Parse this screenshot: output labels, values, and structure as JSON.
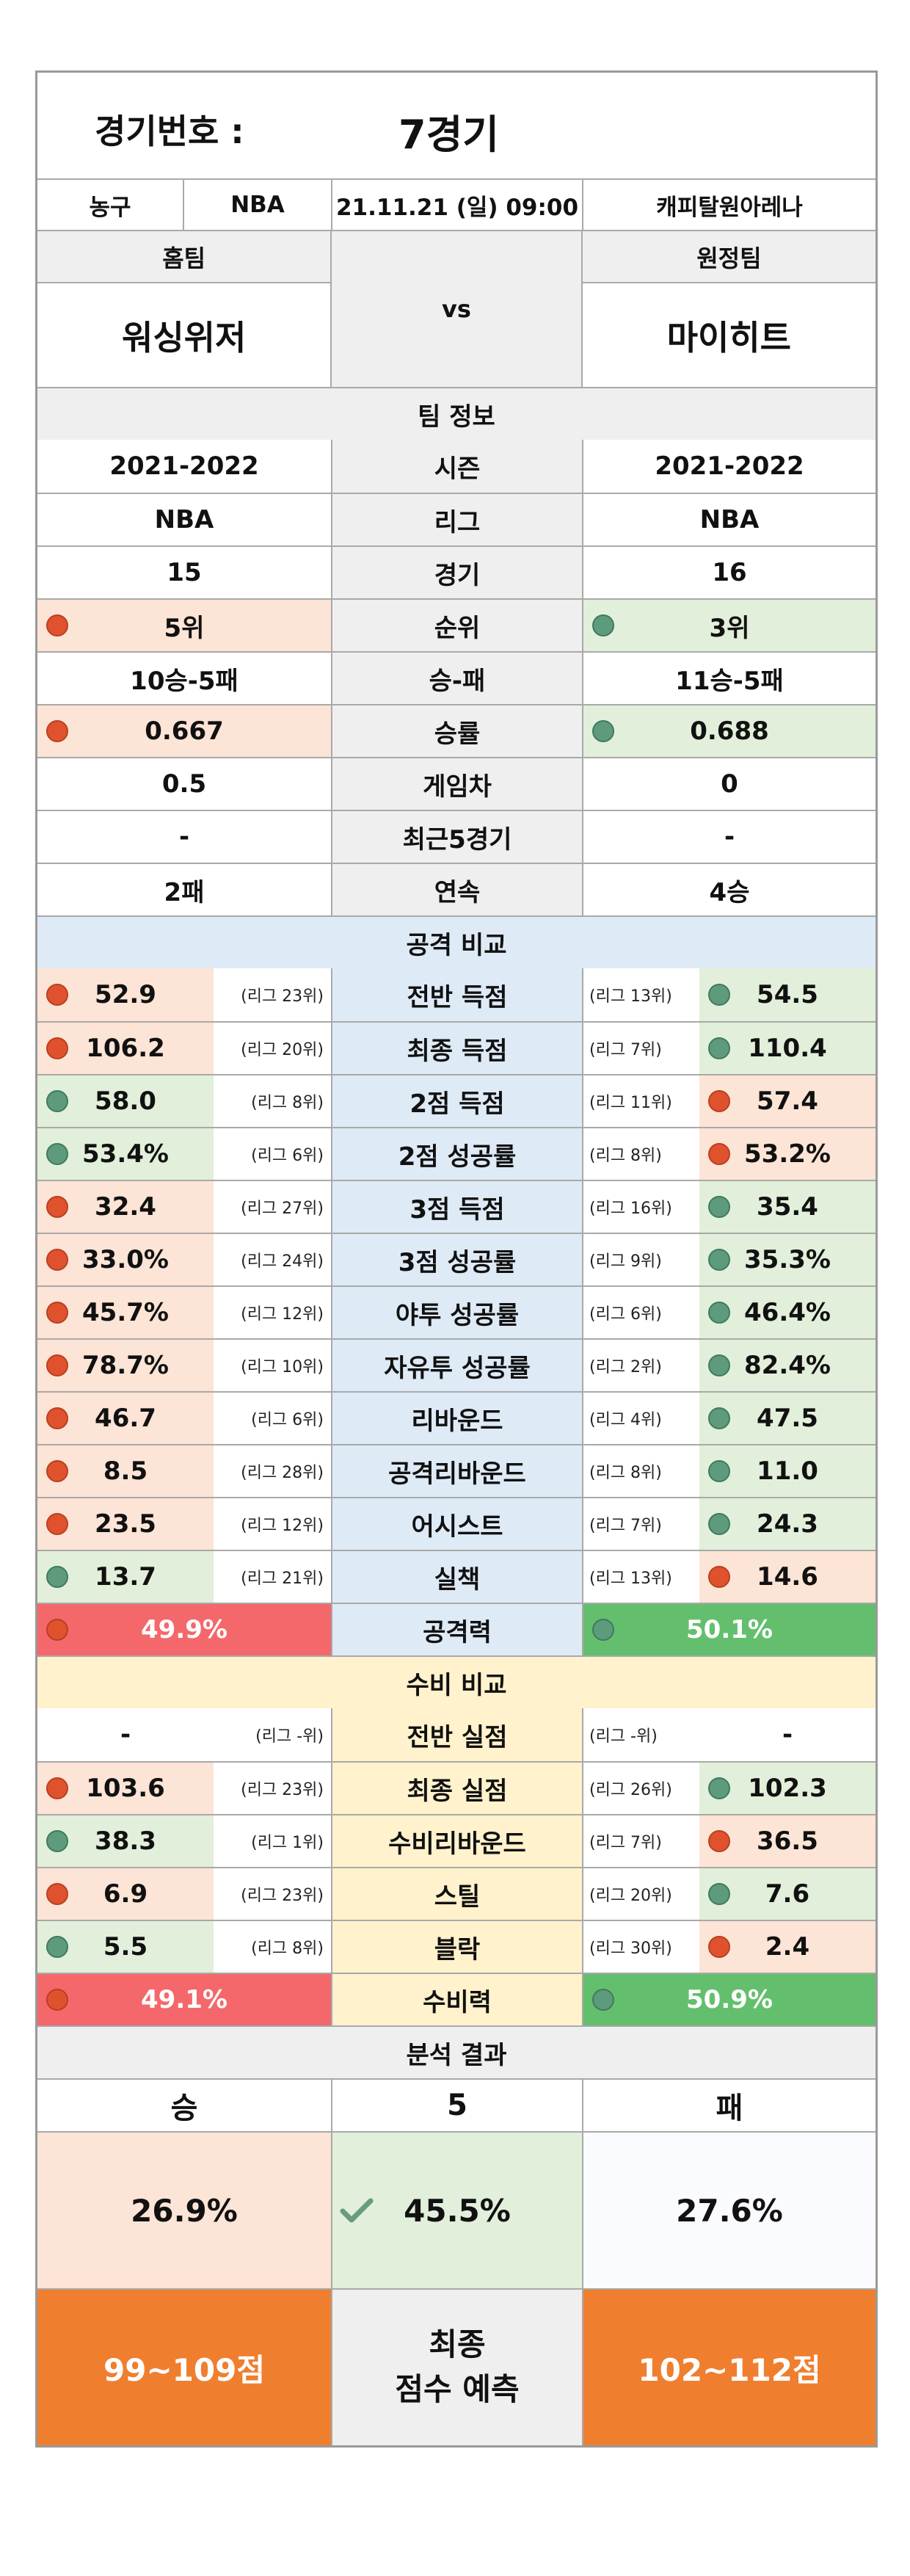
{
  "header": {
    "label": "경기번호 :",
    "value": "7경기"
  },
  "match": {
    "sport": "농구",
    "league": "NBA",
    "datetime": "21.11.21 (일) 09:00",
    "venue": "캐피탈원아레나"
  },
  "teams": {
    "home_label": "홈팀",
    "away_label": "원정팀",
    "home": "워싱위저",
    "away": "마이히트",
    "vs": "vs"
  },
  "team_info": {
    "title": "팀 정보",
    "rows": [
      {
        "label": "시즌",
        "home": "2021-2022",
        "away": "2021-2022",
        "home_dot": "",
        "away_dot": ""
      },
      {
        "label": "리그",
        "home": "NBA",
        "away": "NBA",
        "home_dot": "",
        "away_dot": ""
      },
      {
        "label": "경기",
        "home": "15",
        "away": "16",
        "home_dot": "",
        "away_dot": ""
      },
      {
        "label": "순위",
        "home": "5위",
        "away": "3위",
        "home_dot": "red",
        "away_dot": "green"
      },
      {
        "label": "승-패",
        "home": "10승-5패",
        "away": "11승-5패",
        "home_dot": "",
        "away_dot": ""
      },
      {
        "label": "승률",
        "home": "0.667",
        "away": "0.688",
        "home_dot": "red",
        "away_dot": "green"
      },
      {
        "label": "게임차",
        "home": "0.5",
        "away": "0",
        "home_dot": "",
        "away_dot": ""
      },
      {
        "label": "최근5경기",
        "home": "-",
        "away": "-",
        "home_dot": "",
        "away_dot": ""
      },
      {
        "label": "연속",
        "home": "2패",
        "away": "4승",
        "home_dot": "",
        "away_dot": ""
      }
    ]
  },
  "offense": {
    "title": "공격 비교",
    "rows": [
      {
        "label": "전반 득점",
        "home": "52.9",
        "home_rank": "(리그 23위)",
        "home_dot": "red",
        "away": "54.5",
        "away_rank": "(리그 13위)",
        "away_dot": "green"
      },
      {
        "label": "최종 득점",
        "home": "106.2",
        "home_rank": "(리그 20위)",
        "home_dot": "red",
        "away": "110.4",
        "away_rank": "(리그 7위)",
        "away_dot": "green"
      },
      {
        "label": "2점 득점",
        "home": "58.0",
        "home_rank": "(리그 8위)",
        "home_dot": "green",
        "away": "57.4",
        "away_rank": "(리그 11위)",
        "away_dot": "red"
      },
      {
        "label": "2점 성공률",
        "home": "53.4%",
        "home_rank": "(리그 6위)",
        "home_dot": "green",
        "away": "53.2%",
        "away_rank": "(리그 8위)",
        "away_dot": "red"
      },
      {
        "label": "3점 득점",
        "home": "32.4",
        "home_rank": "(리그 27위)",
        "home_dot": "red",
        "away": "35.4",
        "away_rank": "(리그 16위)",
        "away_dot": "green"
      },
      {
        "label": "3점 성공률",
        "home": "33.0%",
        "home_rank": "(리그 24위)",
        "home_dot": "red",
        "away": "35.3%",
        "away_rank": "(리그 9위)",
        "away_dot": "green"
      },
      {
        "label": "야투 성공률",
        "home": "45.7%",
        "home_rank": "(리그 12위)",
        "home_dot": "red",
        "away": "46.4%",
        "away_rank": "(리그 6위)",
        "away_dot": "green"
      },
      {
        "label": "자유투 성공률",
        "home": "78.7%",
        "home_rank": "(리그 10위)",
        "home_dot": "red",
        "away": "82.4%",
        "away_rank": "(리그 2위)",
        "away_dot": "green"
      },
      {
        "label": "리바운드",
        "home": "46.7",
        "home_rank": "(리그 6위)",
        "home_dot": "red",
        "away": "47.5",
        "away_rank": "(리그 4위)",
        "away_dot": "green"
      },
      {
        "label": "공격리바운드",
        "home": "8.5",
        "home_rank": "(리그 28위)",
        "home_dot": "red",
        "away": "11.0",
        "away_rank": "(리그 8위)",
        "away_dot": "green"
      },
      {
        "label": "어시스트",
        "home": "23.5",
        "home_rank": "(리그 12위)",
        "home_dot": "red",
        "away": "24.3",
        "away_rank": "(리그 7위)",
        "away_dot": "green"
      },
      {
        "label": "실책",
        "home": "13.7",
        "home_rank": "(리그 21위)",
        "home_dot": "green",
        "away": "14.6",
        "away_rank": "(리그 13위)",
        "away_dot": "red"
      }
    ],
    "power": {
      "label": "공격력",
      "home": "49.9%",
      "away": "50.1%"
    }
  },
  "defense": {
    "title": "수비 비교",
    "rows": [
      {
        "label": "전반 실점",
        "home": "-",
        "home_rank": "(리그 -위)",
        "home_dot": "",
        "away": "-",
        "away_rank": "(리그 -위)",
        "away_dot": ""
      },
      {
        "label": "최종 실점",
        "home": "103.6",
        "home_rank": "(리그 23위)",
        "home_dot": "red",
        "away": "102.3",
        "away_rank": "(리그 26위)",
        "away_dot": "green"
      },
      {
        "label": "수비리바운드",
        "home": "38.3",
        "home_rank": "(리그 1위)",
        "home_dot": "green",
        "away": "36.5",
        "away_rank": "(리그 7위)",
        "away_dot": "red"
      },
      {
        "label": "스틸",
        "home": "6.9",
        "home_rank": "(리그 23위)",
        "home_dot": "red",
        "away": "7.6",
        "away_rank": "(리그 20위)",
        "away_dot": "green"
      },
      {
        "label": "블락",
        "home": "5.5",
        "home_rank": "(리그 8위)",
        "home_dot": "green",
        "away": "2.4",
        "away_rank": "(리그 30위)",
        "away_dot": "red"
      }
    ],
    "power": {
      "label": "수비력",
      "home": "49.1%",
      "away": "50.9%"
    }
  },
  "analysis": {
    "title": "분석 결과",
    "win": "승",
    "draw": "5",
    "lose": "패",
    "win_pct": "26.9%",
    "draw_pct": "45.5%",
    "lose_pct": "27.6%",
    "home_score": "99~109점",
    "away_score": "102~112점",
    "final_line1": "최종",
    "final_line2": "점수 예측"
  }
}
